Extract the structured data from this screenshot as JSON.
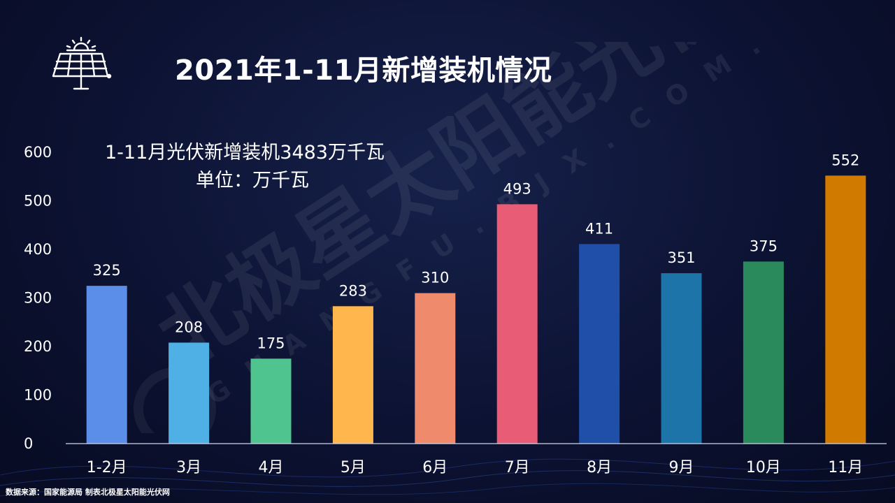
{
  "header": {
    "title": "2021年1-11月新增装机情况",
    "icon": "solar-panel-icon"
  },
  "notes": {
    "total": "1-11月光伏新增装机3483万千瓦",
    "unit": "单位：万千瓦"
  },
  "source": "数据来源：国家能源局 制表北极星太阳能光伏网",
  "watermark": {
    "brand": "北极星太阳能光伏网",
    "domain": "GUANGFU.BJX.COM.CN"
  },
  "colors": {
    "background": "#0c1232",
    "axis": "#cfd6ea",
    "text": "#ffffff"
  },
  "chart_data": {
    "type": "bar",
    "categories": [
      "1-2月",
      "3月",
      "4月",
      "5月",
      "6月",
      "7月",
      "8月",
      "9月",
      "10月",
      "11月"
    ],
    "values": [
      325,
      208,
      175,
      283,
      310,
      493,
      411,
      351,
      375,
      552
    ],
    "bar_colors": [
      "#5b8ee8",
      "#4eb0e4",
      "#4fc48e",
      "#ffb74d",
      "#ef8a6c",
      "#e85c75",
      "#1f4fa8",
      "#1c74a8",
      "#2a8a5c",
      "#d17a00"
    ],
    "yticks": [
      0,
      100,
      200,
      300,
      400,
      500,
      600
    ],
    "ylim": [
      0,
      600
    ],
    "grid": false,
    "legend": "none"
  }
}
